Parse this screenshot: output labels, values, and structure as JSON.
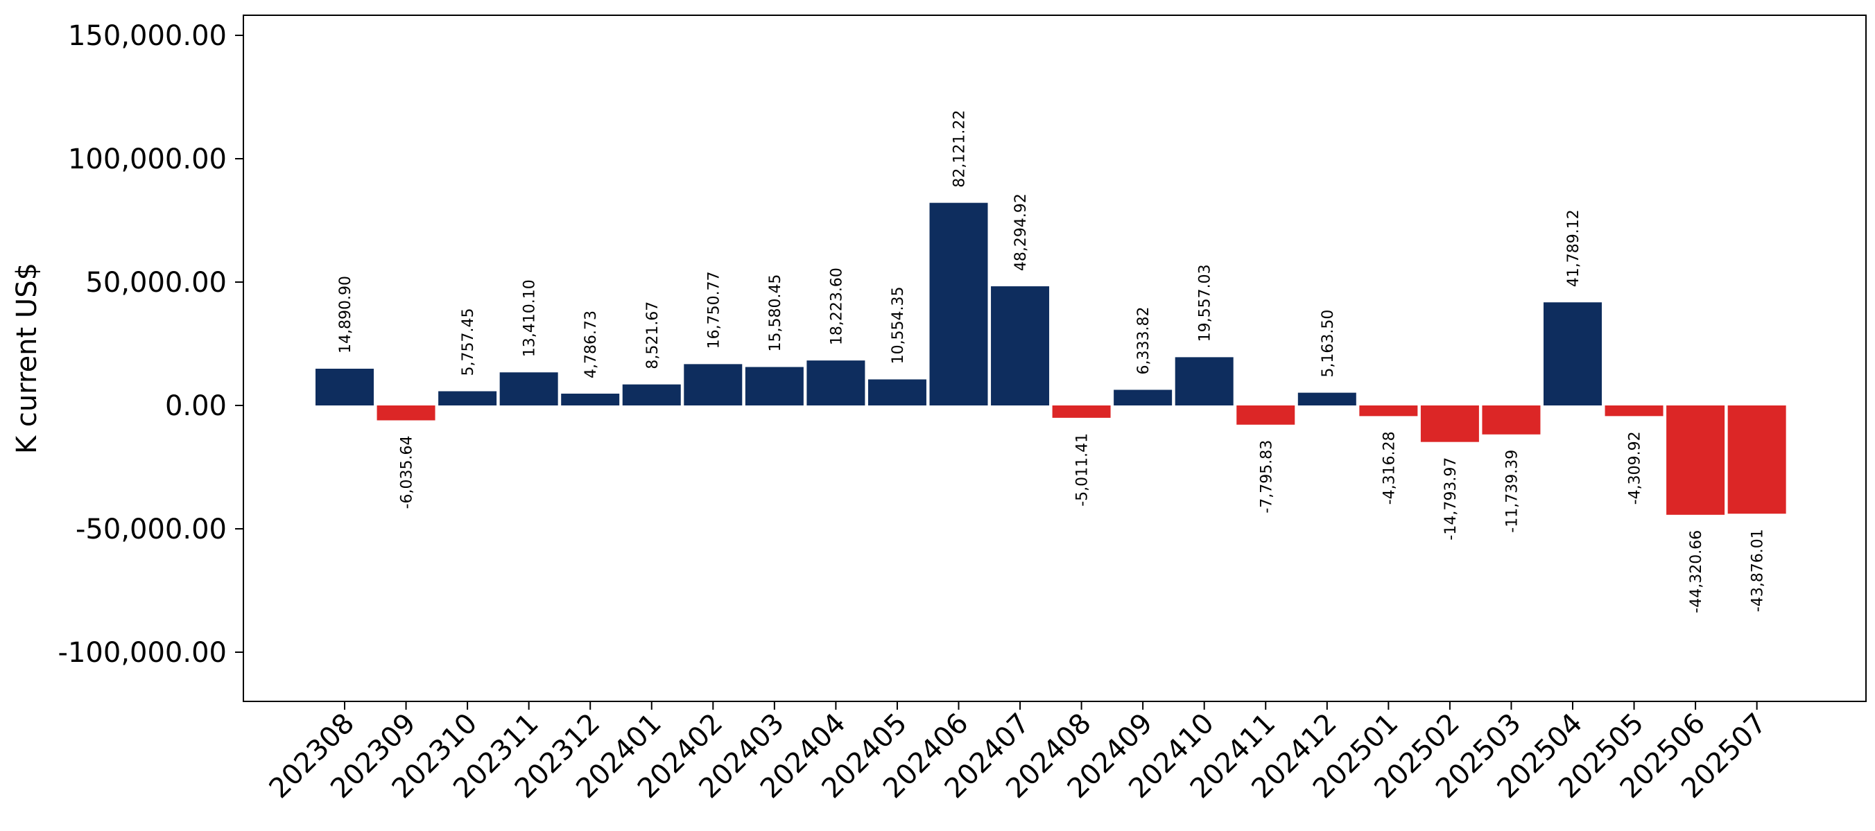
{
  "chart_data": {
    "type": "bar",
    "title": "",
    "xlabel": "",
    "ylabel": "K current US$",
    "ylim": [
      -120000,
      158000
    ],
    "yticks": [
      150000,
      100000,
      50000,
      0,
      -50000,
      -100000
    ],
    "ytick_labels": [
      "150,000.00",
      "100,000.00",
      "50,000.00",
      "0.00",
      "-50,000.00",
      "-100,000.00"
    ],
    "grid": false,
    "legend": "none",
    "colors": {
      "positive": "#0e2d5e",
      "negative": "#dc2626"
    },
    "categories": [
      "202308",
      "202309",
      "202310",
      "202311",
      "202312",
      "202401",
      "202402",
      "202403",
      "202404",
      "202405",
      "202406",
      "202407",
      "202408",
      "202409",
      "202410",
      "202411",
      "202412",
      "202501",
      "202502",
      "202503",
      "202504",
      "202505",
      "202506",
      "202507"
    ],
    "values": [
      14890.9,
      -6035.64,
      5757.45,
      13410.1,
      4786.73,
      8521.67,
      16750.77,
      15580.45,
      18223.6,
      10554.35,
      82121.22,
      48294.92,
      -5011.41,
      6333.82,
      19557.03,
      -7795.83,
      5163.5,
      -4316.28,
      -14793.97,
      -11739.39,
      41789.12,
      -4309.92,
      -44320.66,
      -43876.01
    ],
    "value_labels": [
      "14,890.90",
      "-6,035.64",
      "5,757.45",
      "13,410.10",
      "4,786.73",
      "8,521.67",
      "16,750.77",
      "15,580.45",
      "18,223.60",
      "10,554.35",
      "82,121.22",
      "48,294.92",
      "-5,011.41",
      "6,333.82",
      "19,557.03",
      "-7,795.83",
      "5,163.50",
      "-4,316.28",
      "-14,793.97",
      "-11,739.39",
      "41,789.12",
      "-4,309.92",
      "-44,320.66",
      "-43,876.01"
    ]
  }
}
